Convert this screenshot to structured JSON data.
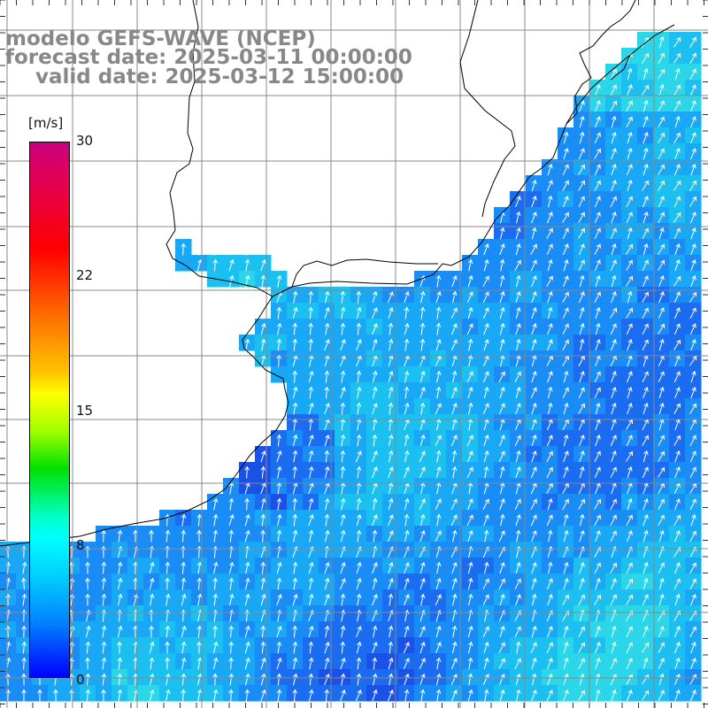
{
  "title": {
    "line1": "modelo GEFS-WAVE (NCEP)",
    "line2": "forecast date: 2025-03-11 00:00:00",
    "line3": "valid date: 2025-03-12 15:00:00"
  },
  "colorbar": {
    "unit": "[m/s]",
    "ticks": [
      "30",
      "22",
      "15",
      "8",
      "0"
    ],
    "tick_values": [
      30,
      22,
      15,
      8,
      0
    ],
    "min": 0,
    "max": 30,
    "colors": [
      "#0000ff",
      "#0080ff",
      "#00c8ff",
      "#00ffff",
      "#00ff00",
      "#ffff00",
      "#ff6a00",
      "#ff0000",
      "#c8007c"
    ]
  },
  "map": {
    "land_color": "#ffffff",
    "coast_color": "#000000",
    "grid_color": "#888888",
    "arrow_color": "#ffffff",
    "field_palette": [
      "#1a52e8",
      "#1a6cf0",
      "#1a8cf5",
      "#19a8f5",
      "#1bc0f0",
      "#2ad6e8"
    ],
    "dominant_wind_direction": "north-northeast"
  }
}
